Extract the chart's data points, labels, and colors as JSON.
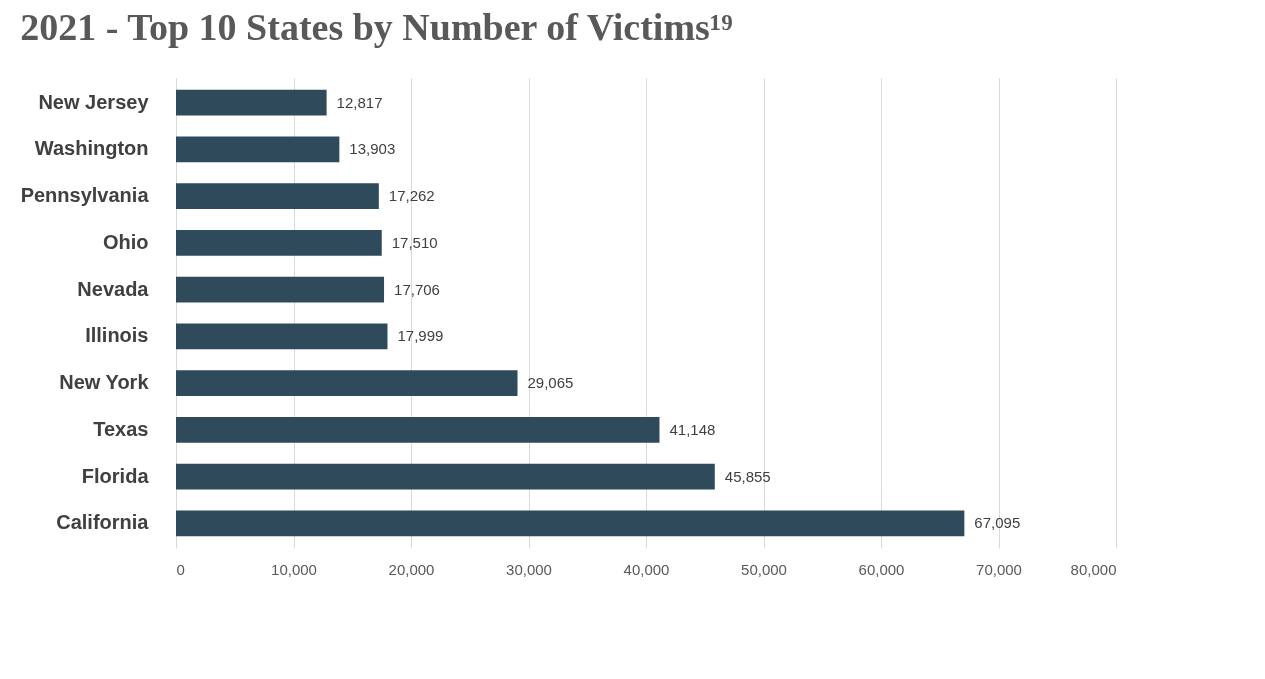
{
  "chart_data": {
    "type": "bar",
    "title": "2021 - Top 10 States by Number of Victims¹⁹",
    "orientation": "horizontal",
    "categories": [
      "New Jersey",
      "Washington",
      "Pennsylvania",
      "Ohio",
      "Nevada",
      "Illinois",
      "New York",
      "Texas",
      "Florida",
      "California"
    ],
    "values": [
      12817,
      13903,
      17262,
      17510,
      17706,
      17999,
      29065,
      41148,
      45855,
      67095
    ],
    "value_labels": [
      "12,817",
      "13,903",
      "17,262",
      "17,510",
      "17,706",
      "17,999",
      "29,065",
      "41,148",
      "45,855",
      "67,095"
    ],
    "color": "#2e4a5b",
    "xlim": [
      0,
      80000
    ],
    "xticks": [
      0,
      {
        "value": 10000,
        "label": "10,000"
      },
      {
        "value": 20000,
        "label": "20,000"
      },
      {
        "value": 30000,
        "label": "30,000"
      },
      {
        "value": 40000,
        "label": "40,000"
      },
      {
        "value": 50000,
        "label": "50,000"
      },
      {
        "value": 60000,
        "label": "60,000"
      },
      {
        "value": 70000,
        "label": "70,000"
      },
      {
        "value": 80000,
        "label": "80,000"
      }
    ],
    "grid": "x"
  }
}
